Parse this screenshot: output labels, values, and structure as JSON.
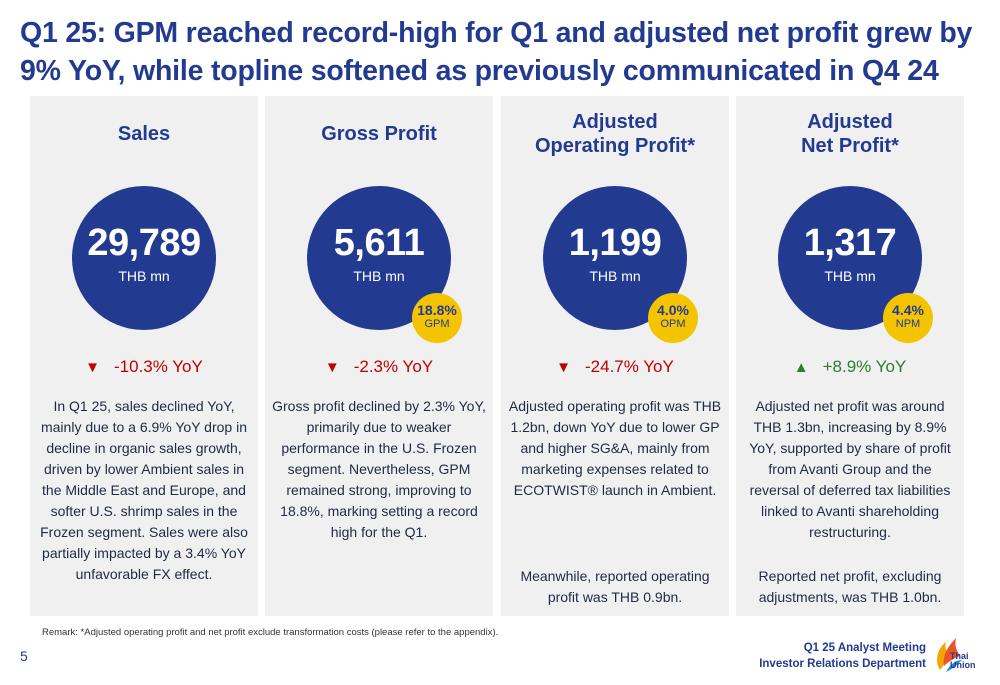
{
  "title": {
    "line1": "Q1 25: GPM reached record-high for Q1 and adjusted net profit grew by",
    "line2": "9% YoY, while topline softened as previously communicated in Q4 24"
  },
  "panels": [
    {
      "title_lines": [
        "Sales"
      ],
      "value": "29,789",
      "unit": "THB mn",
      "badge": null,
      "change_direction": "down",
      "change_arrow": "▼",
      "change_text": "-10.3% YoY",
      "description": "In Q1 25, sales declined YoY, mainly due to a 6.9% YoY drop in decline in organic sales growth, driven by lower Ambient sales in the Middle East and Europe, and softer U.S. shrimp sales in the Frozen segment. Sales were also partially impacted by a 3.4% YoY unfavorable FX effect.",
      "description2": ""
    },
    {
      "title_lines": [
        "Gross Profit"
      ],
      "value": "5,611",
      "unit": "THB mn",
      "badge": {
        "value": "18.8%",
        "label": "GPM"
      },
      "change_direction": "down",
      "change_arrow": "▼",
      "change_text": "-2.3% YoY",
      "description": "Gross profit declined by 2.3% YoY, primarily due to weaker performance in the U.S. Frozen segment. Nevertheless, GPM remained strong, improving to 18.8%, marking setting a record high for the Q1.",
      "description2": ""
    },
    {
      "title_lines": [
        "Adjusted",
        "Operating Profit*"
      ],
      "value": "1,199",
      "unit": "THB mn",
      "badge": {
        "value": "4.0%",
        "label": "OPM"
      },
      "change_direction": "down",
      "change_arrow": "▼",
      "change_text": "-24.7% YoY",
      "description": "Adjusted operating profit was THB 1.2bn, down YoY due to lower GP and higher SG&A, mainly from marketing expenses related to ECOTWIST® launch in Ambient.",
      "description2": "Meanwhile, reported operating profit was THB 0.9bn."
    },
    {
      "title_lines": [
        "Adjusted",
        "Net Profit*"
      ],
      "value": "1,317",
      "unit": "THB mn",
      "badge": {
        "value": "4.4%",
        "label": "NPM"
      },
      "change_direction": "up",
      "change_arrow": "▲",
      "change_text": "+8.9% YoY",
      "description": "Adjusted net profit was around THB 1.3bn, increasing by 8.9% YoY, supported by share of profit from Avanti Group and the reversal of deferred tax liabilities linked to Avanti shareholding restructuring.",
      "description2": "Reported net profit, excluding adjustments, was THB 1.0bn."
    }
  ],
  "remark": "Remark: *Adjusted operating profit and net profit exclude transformation costs (please refer to the appendix).",
  "page_number": "5",
  "footer": {
    "line1": "Q1 25 Analyst Meeting",
    "line2": "Investor Relations Department"
  },
  "logo": {
    "line1": "Thai",
    "line2": "Union",
    "icon": "thai-union-flame-logo"
  },
  "colors": {
    "brand_blue": "#233a91",
    "badge_yellow": "#f5c400",
    "negative": "#c00000",
    "positive": "#2e7d32",
    "panel_bg": "#f0f0f0"
  }
}
